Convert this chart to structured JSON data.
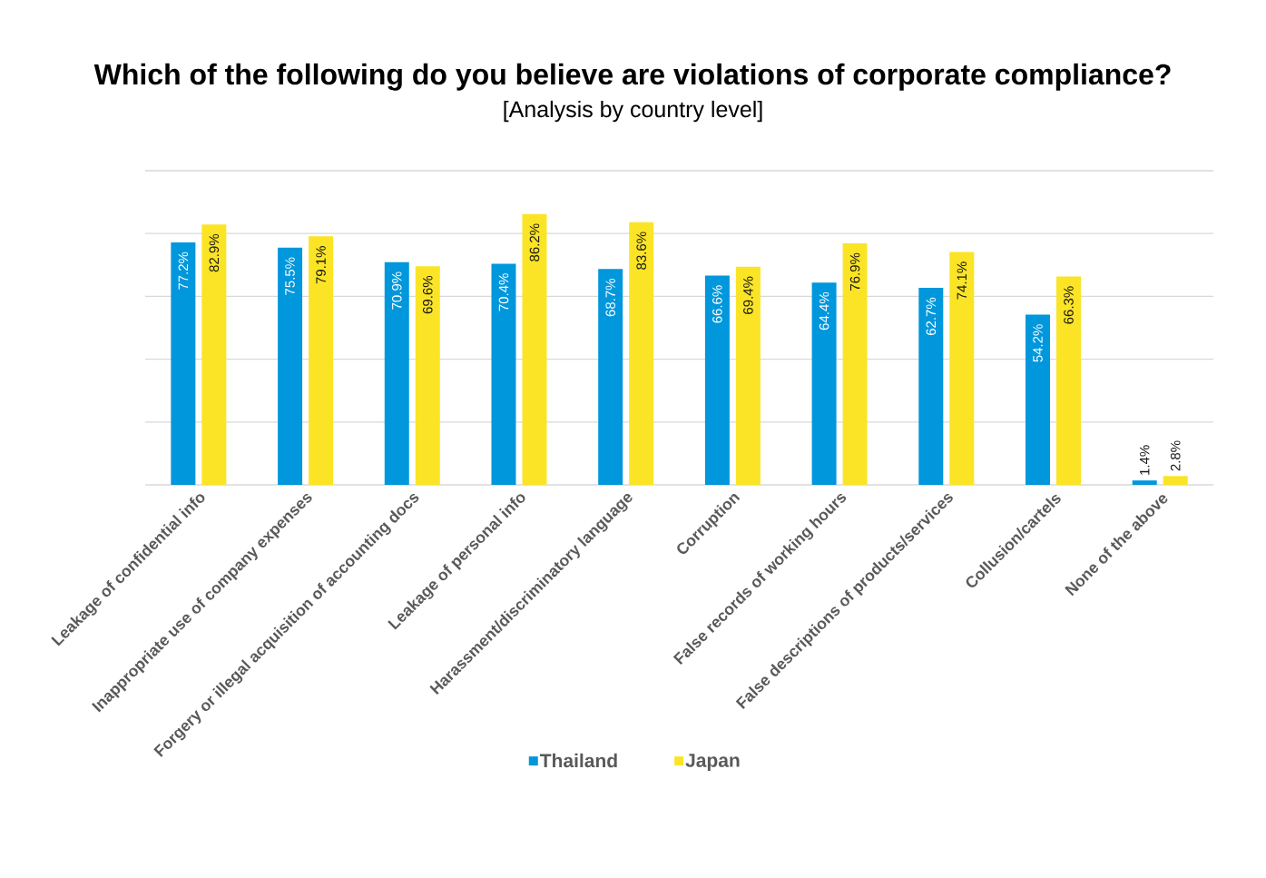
{
  "chart_data": {
    "type": "bar",
    "title": "Which of the following do you believe are violations of corporate compliance?",
    "subtitle": "[Analysis by country level]",
    "categories": [
      "Leakage of confidential info",
      "Inappropriate use of company expenses",
      "Forgery or illegal acquisition of accounting docs",
      "Leakage of personal info",
      "Harassment/discriminatory language",
      "Corruption",
      "False records of working hours",
      "False descriptions of products/services",
      "Collusion/cartels",
      "None of the above"
    ],
    "series": [
      {
        "name": "Thailand",
        "color": "#0097dc",
        "values": [
          77.2,
          75.5,
          70.9,
          70.4,
          68.7,
          66.6,
          64.4,
          62.7,
          54.2,
          1.4
        ],
        "value_labels": [
          "77.2%",
          "75.5%",
          "70.9%",
          "70.4%",
          "68.7%",
          "66.6%",
          "64.4%",
          "62.7%",
          "54.2%",
          "1.4%"
        ]
      },
      {
        "name": "Japan",
        "color": "#fbe425",
        "values": [
          82.9,
          79.1,
          69.6,
          86.2,
          83.6,
          69.4,
          76.9,
          74.1,
          66.3,
          2.8
        ],
        "value_labels": [
          "82.9%",
          "79.1%",
          "69.6%",
          "86.2%",
          "83.6%",
          "69.4%",
          "76.9%",
          "74.1%",
          "66.3%",
          "2.8%"
        ]
      }
    ],
    "ylim": [
      0,
      100
    ],
    "yticks": [
      {
        "value": 0,
        "label": null
      },
      {
        "value": 20,
        "label": null
      },
      {
        "value": 40,
        "label": null
      },
      {
        "value": 60,
        "label": null
      },
      {
        "value": 80,
        "label": null
      },
      {
        "value": 100,
        "label": null
      }
    ],
    "grid": "y",
    "legend": "bottom",
    "tick_labels": "x"
  }
}
